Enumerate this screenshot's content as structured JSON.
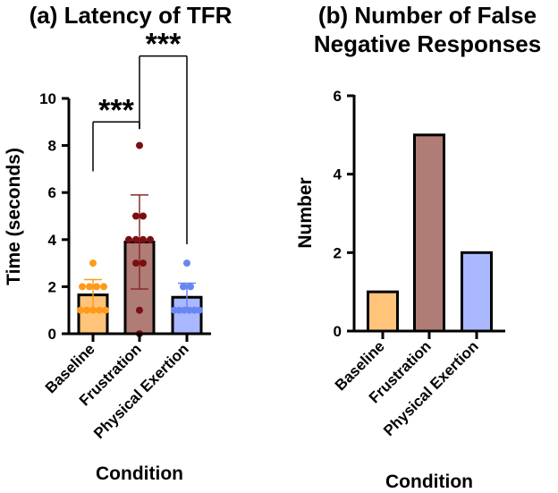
{
  "chart_data": [
    {
      "type": "bar",
      "title": "(a) Latency of TFR",
      "xlabel": "Condition",
      "ylabel": "Time  (seconds)",
      "categories": [
        "Baseline",
        "Frustration",
        "Physical Exertion"
      ],
      "values": [
        1.65,
        3.9,
        1.55
      ],
      "error": [
        0.65,
        2.0,
        0.6
      ],
      "points": [
        [
          1,
          1,
          1,
          1,
          1,
          2,
          2,
          2,
          2,
          3
        ],
        [
          0,
          1,
          3,
          3,
          4,
          4,
          4,
          4,
          5,
          5,
          8
        ],
        [
          1,
          1,
          1,
          1,
          1,
          1,
          2,
          2,
          3
        ]
      ],
      "colors": [
        "#ffc47a",
        "#b07c76",
        "#aab8ff"
      ],
      "point_colors": [
        "#ff9a1a",
        "#7a0f12",
        "#6a86f2"
      ],
      "ylim": [
        0,
        10
      ],
      "yticks": [
        "0",
        "2",
        "4",
        "6",
        "8",
        "10"
      ],
      "significance": [
        {
          "from": 0,
          "to": 1,
          "label": "***"
        },
        {
          "from": 1,
          "to": 2,
          "label": "***"
        }
      ]
    },
    {
      "type": "bar",
      "title": [
        "(b) Number of False",
        "Negative Responses"
      ],
      "xlabel": "Condition",
      "ylabel": "Number",
      "categories": [
        "Baseline",
        "Frustration",
        "Physical Exertion"
      ],
      "values": [
        1,
        5,
        2
      ],
      "colors": [
        "#ffc47a",
        "#b07c76",
        "#aab8ff"
      ],
      "ylim": [
        0,
        6
      ],
      "yticks": [
        "0",
        "2",
        "4",
        "6"
      ]
    }
  ]
}
